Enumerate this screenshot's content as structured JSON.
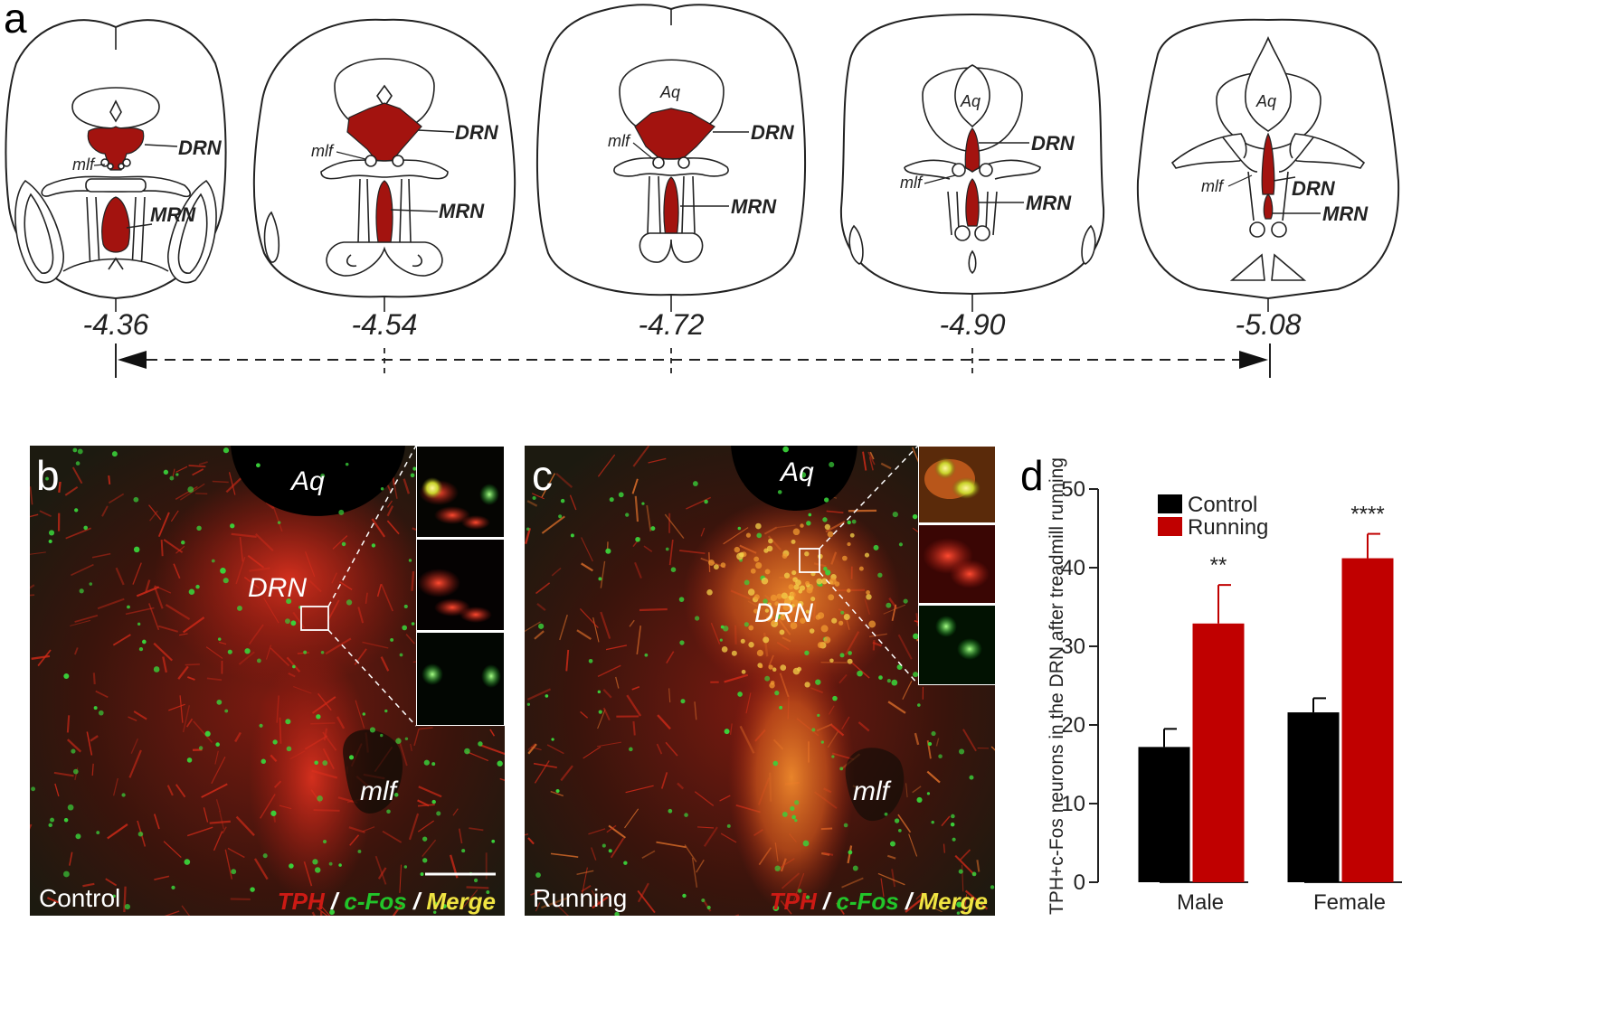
{
  "panels": {
    "a": {
      "letter": "a",
      "sections": [
        {
          "coord": "-4.36",
          "aq": "",
          "drn": "DRN",
          "mrn": "MRN",
          "mlf": "mlf"
        },
        {
          "coord": "-4.54",
          "aq": "",
          "drn": "DRN",
          "mrn": "MRN",
          "mlf": "mlf"
        },
        {
          "coord": "-4.72",
          "aq": "Aq",
          "drn": "DRN",
          "mrn": "MRN",
          "mlf": "mlf"
        },
        {
          "coord": "-4.90",
          "aq": "Aq",
          "drn": "DRN",
          "mrn": "MRN",
          "mlf": "mlf"
        },
        {
          "coord": "-5.08",
          "aq": "Aq",
          "drn": "DRN",
          "mrn": "MRN",
          "mlf": "mlf"
        }
      ]
    },
    "b": {
      "letter": "b",
      "aq": "Aq",
      "drn": "DRN",
      "mlf": "mlf",
      "condition": "Control",
      "stain": {
        "tph": "TPH",
        "sep1": " / ",
        "cfos": "c-Fos",
        "sep2": " / ",
        "merge": "Merge"
      }
    },
    "c": {
      "letter": "c",
      "aq": "Aq",
      "drn": "DRN",
      "mlf": "mlf",
      "condition": "Running",
      "stain": {
        "tph": "TPH",
        "sep1": " / ",
        "cfos": "c-Fos",
        "sep2": " / ",
        "merge": "Merge"
      }
    },
    "d": {
      "letter": "d"
    }
  },
  "colors": {
    "nucleus_red": "#a3130f",
    "control_bar": "#000000",
    "running_bar": "#c00000",
    "tph_red": "#cc1a14",
    "cfos_green": "#22c52a",
    "merge_yellow": "#f0e442"
  },
  "chart_data": {
    "type": "bar",
    "title": "",
    "xlabel": "",
    "ylabel": "TPH+c-Fos neurons in the DRN after treadmill running",
    "ylim": [
      0,
      50
    ],
    "yticks": [
      0,
      10,
      20,
      30,
      40,
      50
    ],
    "categories": [
      "Male",
      "Female"
    ],
    "legend_position": "top-left",
    "series": [
      {
        "name": "Control",
        "color": "#000000",
        "values": [
          17.2,
          21.6
        ],
        "errors": [
          2.3,
          1.8
        ]
      },
      {
        "name": "Running",
        "color": "#c00000",
        "values": [
          32.9,
          41.2
        ],
        "errors": [
          4.9,
          3.1
        ]
      }
    ],
    "annotations": [
      {
        "category": "Male",
        "series": "Running",
        "text": "**"
      },
      {
        "category": "Female",
        "series": "Running",
        "text": "****"
      }
    ]
  }
}
